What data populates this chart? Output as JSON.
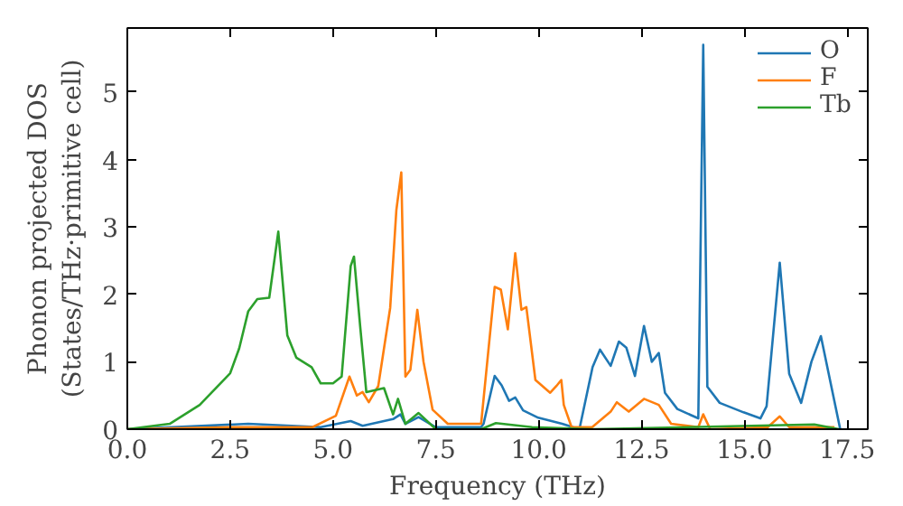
{
  "chart_data": {
    "type": "line",
    "xlabel": "Frequency (THz)",
    "ylabel": "Phonon projected DOS\n(States/THz·primitive cell)",
    "xlim": [
      0,
      18
    ],
    "ylim": [
      0,
      5.95
    ],
    "xticks": [
      {
        "value": 0,
        "label": "0.0"
      },
      {
        "value": 2.5,
        "label": "2.5"
      },
      {
        "value": 5,
        "label": "5.0"
      },
      {
        "value": 7.5,
        "label": "7.5"
      },
      {
        "value": 10,
        "label": "10.0"
      },
      {
        "value": 12.5,
        "label": "12.5"
      },
      {
        "value": 15,
        "label": "15.0"
      },
      {
        "value": 17.5,
        "label": "17.5"
      }
    ],
    "yticks": [
      0,
      1,
      2,
      3,
      4,
      5
    ],
    "grid": false,
    "legend": "top right",
    "series": [
      {
        "name": "O",
        "color": "#1f77b4",
        "x": [
          0,
          2.94,
          4.7,
          5.43,
          5.72,
          6.46,
          6.64,
          6.76,
          7.08,
          7.5,
          8.6,
          8.66,
          8.93,
          9.1,
          9.28,
          9.43,
          9.62,
          9.99,
          10.57,
          10.99,
          11.31,
          11.49,
          11.75,
          11.95,
          12.13,
          12.34,
          12.56,
          12.75,
          12.92,
          13.07,
          13.37,
          13.88,
          14.0,
          14.1,
          14.4,
          14.98,
          15.39,
          15.54,
          15.86,
          16.09,
          16.38,
          16.63,
          16.86,
          17.33
        ],
        "values": [
          0,
          0.08,
          0.03,
          0.12,
          0.05,
          0.15,
          0.22,
          0.08,
          0.18,
          0.03,
          0.03,
          0.08,
          0.79,
          0.65,
          0.42,
          0.47,
          0.28,
          0.17,
          0.08,
          0,
          0.92,
          1.18,
          0.94,
          1.3,
          1.21,
          0.79,
          1.53,
          1.0,
          1.13,
          0.54,
          0.3,
          0.16,
          5.7,
          0.63,
          0.39,
          0.25,
          0.16,
          0.34,
          2.47,
          0.82,
          0.39,
          1.0,
          1.38,
          0
        ]
      },
      {
        "name": "F",
        "color": "#ff7f0e",
        "x": [
          0,
          2.5,
          4.5,
          5.07,
          5.4,
          5.58,
          5.72,
          5.87,
          6.1,
          6.39,
          6.54,
          6.66,
          6.76,
          6.88,
          7.05,
          7.2,
          7.42,
          7.79,
          8.6,
          8.93,
          9.08,
          9.25,
          9.43,
          9.58,
          9.7,
          9.92,
          10.28,
          10.43,
          10.55,
          10.61,
          10.8,
          11.3,
          11.75,
          11.9,
          12.19,
          12.56,
          12.92,
          13.22,
          13.88,
          14.0,
          14.17,
          15.57,
          15.86,
          16.09,
          17.19
        ],
        "values": [
          0,
          0.03,
          0.03,
          0.2,
          0.78,
          0.5,
          0.55,
          0.4,
          0.64,
          1.8,
          3.25,
          3.81,
          0.78,
          0.88,
          1.77,
          1.0,
          0.29,
          0.08,
          0.08,
          2.11,
          2.07,
          1.48,
          2.61,
          1.77,
          1.81,
          0.73,
          0.54,
          0.64,
          0.73,
          0.36,
          0.03,
          0.03,
          0.26,
          0.4,
          0.26,
          0.45,
          0.36,
          0.08,
          0.03,
          0.22,
          0,
          0.03,
          0.19,
          0.03,
          0.03
        ]
      },
      {
        "name": "Tb",
        "color": "#2ca02c",
        "x": [
          0,
          1.03,
          1.76,
          2.5,
          2.72,
          2.94,
          3.16,
          3.45,
          3.67,
          3.89,
          4.11,
          4.48,
          4.7,
          5.0,
          5.21,
          5.43,
          5.51,
          5.66,
          5.81,
          6.24,
          6.46,
          6.58,
          6.76,
          7.08,
          7.5,
          8.6,
          8.96,
          9.84,
          11.31,
          16.7,
          17.3
        ],
        "values": [
          0,
          0.08,
          0.36,
          0.83,
          1.2,
          1.75,
          1.93,
          1.95,
          2.93,
          1.39,
          1.06,
          0.92,
          0.68,
          0.68,
          0.78,
          2.42,
          2.56,
          1.53,
          0.55,
          0.61,
          0.22,
          0.45,
          0.08,
          0.24,
          0,
          0,
          0.09,
          0.03,
          0,
          0.07,
          0
        ]
      }
    ]
  }
}
